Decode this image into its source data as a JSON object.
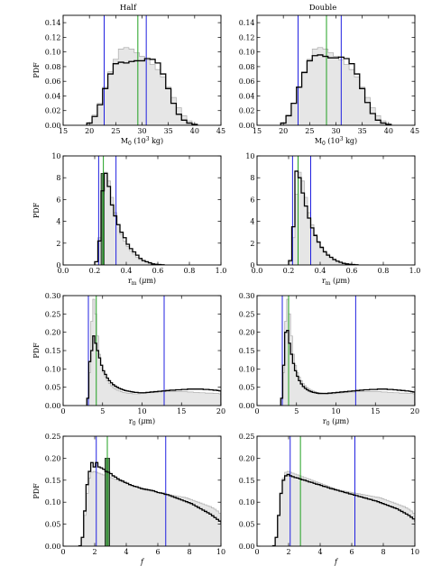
{
  "figure": {
    "column_titles": [
      "Half",
      "Double"
    ]
  },
  "colors": {
    "prior_fill": "#e6e6e6",
    "prior_edge": "#b4b4b4",
    "posterior": "#000000",
    "interval_lines": "#2020e0",
    "median_line": "#20a020"
  },
  "chart_data": [
    {
      "type": "histogram",
      "row": 0,
      "col": 0,
      "ylabel": "PDF",
      "xlabel_main": "M",
      "xlabel_sub": "0",
      "xlabel_rest": " (10",
      "xlabel_sup": "3",
      "xlabel_tail": " kg)",
      "xlim": [
        15,
        45
      ],
      "ylim": [
        0,
        0.15
      ],
      "xticks": [
        15,
        20,
        25,
        30,
        35,
        40,
        45
      ],
      "yticks": [
        0.0,
        0.02,
        0.04,
        0.06,
        0.08,
        0.1,
        0.12,
        0.14
      ],
      "ytick_labels": [
        "0.00",
        "0.02",
        "0.04",
        "0.06",
        "0.08",
        "0.10",
        "0.12",
        "0.14"
      ],
      "bin_start": 19.5,
      "bin_width": 1,
      "prior": [
        0.003,
        0.014,
        0.03,
        0.052,
        0.073,
        0.09,
        0.104,
        0.106,
        0.104,
        0.099,
        0.094,
        0.089,
        0.083,
        0.076,
        0.066,
        0.052,
        0.038,
        0.024,
        0.013,
        0.006,
        0.002
      ],
      "posterior": [
        0.003,
        0.012,
        0.028,
        0.05,
        0.07,
        0.084,
        0.086,
        0.085,
        0.087,
        0.088,
        0.088,
        0.091,
        0.09,
        0.085,
        0.07,
        0.05,
        0.03,
        0.015,
        0.007,
        0.003,
        0.001
      ],
      "vlines_blue": [
        22.8,
        30.8
      ],
      "vline_green": 29.2
    },
    {
      "type": "histogram",
      "row": 0,
      "col": 1,
      "ylabel": "",
      "xlabel_main": "M",
      "xlabel_sub": "0",
      "xlabel_rest": " (10",
      "xlabel_sup": "3",
      "xlabel_tail": " kg)",
      "xlim": [
        15,
        45
      ],
      "ylim": [
        0,
        0.15
      ],
      "xticks": [
        15,
        20,
        25,
        30,
        35,
        40,
        45
      ],
      "yticks": [
        0.0,
        0.02,
        0.04,
        0.06,
        0.08,
        0.1,
        0.12,
        0.14
      ],
      "ytick_labels": [
        "0.00",
        "0.02",
        "0.04",
        "0.06",
        "0.08",
        "0.10",
        "0.12",
        "0.14"
      ],
      "bin_start": 19.5,
      "bin_width": 1,
      "prior": [
        0.003,
        0.014,
        0.03,
        0.052,
        0.073,
        0.09,
        0.104,
        0.106,
        0.104,
        0.099,
        0.094,
        0.089,
        0.083,
        0.076,
        0.066,
        0.052,
        0.038,
        0.024,
        0.013,
        0.006,
        0.002
      ],
      "posterior": [
        0.003,
        0.013,
        0.03,
        0.052,
        0.072,
        0.088,
        0.095,
        0.096,
        0.094,
        0.092,
        0.092,
        0.093,
        0.091,
        0.084,
        0.07,
        0.05,
        0.031,
        0.016,
        0.007,
        0.003,
        0.001
      ],
      "vlines_blue": [
        22.8,
        31.0
      ],
      "vline_green": 28.2
    },
    {
      "type": "histogram",
      "row": 1,
      "col": 0,
      "ylabel": "PDF",
      "xlabel_main": "r",
      "xlabel_sub": "m",
      "xlabel_rest": " (",
      "xlabel_mu": true,
      "xlabel_tail": "m)",
      "xlim": [
        0,
        1
      ],
      "ylim": [
        0,
        10
      ],
      "xticks": [
        0.0,
        0.2,
        0.4,
        0.6,
        0.8,
        1.0
      ],
      "xtick_labels": [
        "0.0",
        "0.2",
        "0.4",
        "0.6",
        "0.8",
        "1.0"
      ],
      "yticks": [
        0,
        2,
        4,
        6,
        8,
        10
      ],
      "ytick_labels": [
        "0",
        "2",
        "4",
        "6",
        "8",
        "10"
      ],
      "bin_start": 0.2,
      "bin_width": 0.02,
      "prior": [
        0.3,
        2.5,
        6.5,
        8.5,
        7.7,
        6.2,
        4.8,
        3.7,
        2.8,
        2.2,
        1.7,
        1.3,
        1.0,
        0.7,
        0.5,
        0.35,
        0.25,
        0.15,
        0.1,
        0.05,
        0.03,
        0.02
      ],
      "posterior": [
        0.3,
        2.2,
        6.8,
        8.4,
        7.2,
        5.5,
        4.5,
        3.7,
        3.0,
        2.5,
        1.9,
        1.5,
        1.2,
        0.9,
        0.6,
        0.4,
        0.3,
        0.2,
        0.1,
        0.06,
        0.04,
        0.02
      ],
      "highlight": {
        "x0": 0.24,
        "x1": 0.26,
        "y": 8.4
      },
      "vlines_blue": [
        0.225,
        0.335
      ],
      "vline_green": 0.255
    },
    {
      "type": "histogram",
      "row": 1,
      "col": 1,
      "ylabel": "",
      "xlabel_main": "r",
      "xlabel_sub": "m",
      "xlabel_rest": " (",
      "xlabel_mu": true,
      "xlabel_tail": "m)",
      "xlim": [
        0,
        1
      ],
      "ylim": [
        0,
        10
      ],
      "xticks": [
        0.0,
        0.2,
        0.4,
        0.6,
        0.8,
        1.0
      ],
      "xtick_labels": [
        "0.0",
        "0.2",
        "0.4",
        "0.6",
        "0.8",
        "1.0"
      ],
      "yticks": [
        0,
        2,
        4,
        6,
        8,
        10
      ],
      "ytick_labels": [
        "0",
        "2",
        "4",
        "6",
        "8",
        "10"
      ],
      "bin_start": 0.2,
      "bin_width": 0.02,
      "prior": [
        0.3,
        2.5,
        6.5,
        8.5,
        7.7,
        6.2,
        4.8,
        3.7,
        2.8,
        2.2,
        1.7,
        1.3,
        1.0,
        0.7,
        0.5,
        0.35,
        0.25,
        0.15,
        0.1,
        0.05,
        0.03,
        0.02
      ],
      "posterior": [
        0.4,
        3.5,
        8.6,
        8.0,
        6.6,
        5.4,
        4.3,
        3.4,
        2.7,
        2.1,
        1.6,
        1.2,
        0.9,
        0.7,
        0.5,
        0.35,
        0.25,
        0.15,
        0.1,
        0.06,
        0.04,
        0.02
      ],
      "vlines_blue": [
        0.225,
        0.34
      ],
      "vline_green": 0.26
    },
    {
      "type": "histogram",
      "row": 2,
      "col": 0,
      "ylabel": "PDF",
      "xlabel_main": "r",
      "xlabel_sub": "0",
      "xlabel_rest": " (",
      "xlabel_mu": true,
      "xlabel_tail": "m)",
      "xlim": [
        0,
        20
      ],
      "ylim": [
        0,
        0.3
      ],
      "xticks": [
        0,
        5,
        10,
        15,
        20
      ],
      "yticks": [
        0.0,
        0.05,
        0.1,
        0.15,
        0.2,
        0.25,
        0.3
      ],
      "ytick_labels": [
        "0.00",
        "0.05",
        "0.10",
        "0.15",
        "0.20",
        "0.25",
        "0.30"
      ],
      "bin_start": 3,
      "bin_width": 0.25,
      "prior": [
        0.02,
        0.09,
        0.23,
        0.29,
        0.25,
        0.19,
        0.14,
        0.11,
        0.09,
        0.078,
        0.068,
        0.06,
        0.054,
        0.049,
        0.045,
        0.042,
        0.04,
        0.038,
        0.036,
        0.035,
        0.034,
        0.033,
        0.033,
        0.032,
        0.032,
        0.032,
        0.032,
        0.033,
        0.033,
        0.034,
        0.034,
        0.035,
        0.035,
        0.036,
        0.036,
        0.037,
        0.037,
        0.037,
        0.038,
        0.038,
        0.038,
        0.038,
        0.038,
        0.038,
        0.038,
        0.038,
        0.038,
        0.038,
        0.038,
        0.038,
        0.038,
        0.037,
        0.037,
        0.037,
        0.036,
        0.036,
        0.036,
        0.035,
        0.035,
        0.035,
        0.034,
        0.034,
        0.034,
        0.034,
        0.033,
        0.033,
        0.033,
        0.032
      ],
      "posterior": [
        0.02,
        0.12,
        0.15,
        0.19,
        0.17,
        0.15,
        0.13,
        0.11,
        0.095,
        0.085,
        0.075,
        0.068,
        0.062,
        0.057,
        0.053,
        0.05,
        0.047,
        0.045,
        0.043,
        0.041,
        0.04,
        0.039,
        0.038,
        0.037,
        0.036,
        0.036,
        0.035,
        0.035,
        0.035,
        0.035,
        0.036,
        0.036,
        0.037,
        0.037,
        0.038,
        0.038,
        0.039,
        0.039,
        0.04,
        0.04,
        0.041,
        0.041,
        0.042,
        0.042,
        0.042,
        0.043,
        0.043,
        0.043,
        0.044,
        0.044,
        0.044,
        0.045,
        0.045,
        0.045,
        0.045,
        0.045,
        0.045,
        0.045,
        0.045,
        0.044,
        0.044,
        0.044,
        0.043,
        0.043,
        0.042,
        0.042,
        0.041,
        0.04
      ],
      "vlines_blue": [
        3.2,
        12.8
      ],
      "vline_green": 4.2
    },
    {
      "type": "histogram",
      "row": 2,
      "col": 1,
      "ylabel": "",
      "xlabel_main": "r",
      "xlabel_sub": "0",
      "xlabel_rest": " (",
      "xlabel_mu": true,
      "xlabel_tail": "m)",
      "xlim": [
        0,
        20
      ],
      "ylim": [
        0,
        0.3
      ],
      "xticks": [
        0,
        5,
        10,
        15,
        20
      ],
      "yticks": [
        0.0,
        0.05,
        0.1,
        0.15,
        0.2,
        0.25,
        0.3
      ],
      "ytick_labels": [
        "0.00",
        "0.05",
        "0.10",
        "0.15",
        "0.20",
        "0.25",
        "0.30"
      ],
      "bin_start": 3,
      "bin_width": 0.25,
      "prior": [
        0.02,
        0.09,
        0.23,
        0.29,
        0.25,
        0.19,
        0.14,
        0.11,
        0.09,
        0.078,
        0.068,
        0.06,
        0.054,
        0.049,
        0.045,
        0.042,
        0.04,
        0.038,
        0.036,
        0.035,
        0.034,
        0.033,
        0.033,
        0.032,
        0.032,
        0.032,
        0.032,
        0.033,
        0.033,
        0.034,
        0.034,
        0.035,
        0.035,
        0.036,
        0.036,
        0.037,
        0.037,
        0.037,
        0.038,
        0.038,
        0.038,
        0.038,
        0.038,
        0.038,
        0.038,
        0.038,
        0.038,
        0.038,
        0.038,
        0.038,
        0.038,
        0.037,
        0.037,
        0.037,
        0.036,
        0.036,
        0.036,
        0.035,
        0.035,
        0.035,
        0.034,
        0.034,
        0.034,
        0.034,
        0.033,
        0.033,
        0.033,
        0.032
      ],
      "posterior": [
        0.02,
        0.11,
        0.2,
        0.205,
        0.17,
        0.14,
        0.115,
        0.095,
        0.08,
        0.068,
        0.059,
        0.052,
        0.047,
        0.043,
        0.04,
        0.038,
        0.036,
        0.035,
        0.034,
        0.033,
        0.033,
        0.033,
        0.033,
        0.033,
        0.034,
        0.034,
        0.035,
        0.035,
        0.036,
        0.036,
        0.037,
        0.037,
        0.038,
        0.038,
        0.039,
        0.039,
        0.04,
        0.04,
        0.041,
        0.041,
        0.042,
        0.042,
        0.043,
        0.043,
        0.043,
        0.044,
        0.044,
        0.044,
        0.044,
        0.045,
        0.045,
        0.045,
        0.045,
        0.045,
        0.044,
        0.044,
        0.044,
        0.043,
        0.043,
        0.042,
        0.042,
        0.041,
        0.041,
        0.04,
        0.04,
        0.039,
        0.038,
        0.037
      ],
      "vlines_blue": [
        3.2,
        12.5
      ],
      "vline_green": 4.0
    },
    {
      "type": "histogram",
      "row": 3,
      "col": 0,
      "ylabel": "PDF",
      "xlabel_f": "f",
      "xlim": [
        0,
        10
      ],
      "ylim": [
        0,
        0.25
      ],
      "xticks": [
        0,
        2,
        4,
        6,
        8,
        10
      ],
      "yticks": [
        0.0,
        0.05,
        0.1,
        0.15,
        0.2,
        0.25
      ],
      "ytick_labels": [
        "0.00",
        "0.05",
        "0.10",
        "0.15",
        "0.20",
        "0.25"
      ],
      "bin_start": 1,
      "bin_width": 0.15,
      "prior": [
        0.001,
        0.02,
        0.07,
        0.12,
        0.155,
        0.168,
        0.17,
        0.168,
        0.166,
        0.164,
        0.162,
        0.16,
        0.158,
        0.156,
        0.154,
        0.152,
        0.15,
        0.148,
        0.146,
        0.144,
        0.142,
        0.14,
        0.138,
        0.136,
        0.134,
        0.132,
        0.13,
        0.128,
        0.127,
        0.126,
        0.125,
        0.124,
        0.123,
        0.122,
        0.121,
        0.12,
        0.119,
        0.118,
        0.117,
        0.116,
        0.115,
        0.114,
        0.113,
        0.112,
        0.111,
        0.11,
        0.108,
        0.106,
        0.104,
        0.102,
        0.1,
        0.098,
        0.096,
        0.094,
        0.092,
        0.09,
        0.087,
        0.084,
        0.08,
        0.075,
        0.07
      ],
      "posterior": [
        0.001,
        0.02,
        0.08,
        0.14,
        0.17,
        0.19,
        0.18,
        0.19,
        0.18,
        0.178,
        0.175,
        0.17,
        0.168,
        0.165,
        0.16,
        0.157,
        0.153,
        0.15,
        0.148,
        0.145,
        0.143,
        0.14,
        0.138,
        0.136,
        0.135,
        0.133,
        0.131,
        0.13,
        0.129,
        0.128,
        0.127,
        0.126,
        0.124,
        0.122,
        0.121,
        0.12,
        0.118,
        0.117,
        0.115,
        0.113,
        0.111,
        0.109,
        0.107,
        0.105,
        0.103,
        0.101,
        0.099,
        0.097,
        0.094,
        0.091,
        0.088,
        0.085,
        0.082,
        0.079,
        0.076,
        0.073,
        0.069,
        0.065,
        0.061,
        0.057,
        0.053
      ],
      "highlight": {
        "x0": 2.65,
        "x1": 2.95,
        "y": 0.2
      },
      "vlines_blue": [
        2.1,
        6.5
      ],
      "vline_green": 2.8
    },
    {
      "type": "histogram",
      "row": 3,
      "col": 1,
      "ylabel": "",
      "xlabel_f": "f",
      "xlim": [
        0,
        10
      ],
      "ylim": [
        0,
        0.25
      ],
      "xticks": [
        0,
        2,
        4,
        6,
        8,
        10
      ],
      "yticks": [
        0.0,
        0.05,
        0.1,
        0.15,
        0.2,
        0.25
      ],
      "ytick_labels": [
        "0.00",
        "0.05",
        "0.10",
        "0.15",
        "0.20",
        "0.25"
      ],
      "bin_start": 1,
      "bin_width": 0.15,
      "prior": [
        0.001,
        0.02,
        0.07,
        0.12,
        0.155,
        0.168,
        0.17,
        0.168,
        0.166,
        0.164,
        0.162,
        0.16,
        0.158,
        0.156,
        0.154,
        0.152,
        0.15,
        0.148,
        0.146,
        0.144,
        0.142,
        0.14,
        0.138,
        0.136,
        0.134,
        0.132,
        0.13,
        0.128,
        0.127,
        0.126,
        0.125,
        0.124,
        0.123,
        0.122,
        0.121,
        0.12,
        0.119,
        0.118,
        0.117,
        0.116,
        0.115,
        0.114,
        0.113,
        0.112,
        0.111,
        0.11,
        0.108,
        0.106,
        0.104,
        0.102,
        0.1,
        0.098,
        0.096,
        0.094,
        0.092,
        0.09,
        0.087,
        0.084,
        0.08,
        0.075,
        0.07
      ],
      "posterior": [
        0.001,
        0.02,
        0.07,
        0.12,
        0.15,
        0.16,
        0.163,
        0.16,
        0.158,
        0.156,
        0.155,
        0.153,
        0.151,
        0.15,
        0.148,
        0.146,
        0.145,
        0.143,
        0.141,
        0.14,
        0.138,
        0.136,
        0.135,
        0.133,
        0.131,
        0.13,
        0.128,
        0.127,
        0.125,
        0.124,
        0.122,
        0.121,
        0.119,
        0.118,
        0.116,
        0.115,
        0.113,
        0.112,
        0.11,
        0.109,
        0.107,
        0.106,
        0.104,
        0.103,
        0.101,
        0.099,
        0.097,
        0.095,
        0.093,
        0.091,
        0.089,
        0.087,
        0.085,
        0.082,
        0.079,
        0.076,
        0.073,
        0.07,
        0.066,
        0.062,
        0.057
      ],
      "vlines_blue": [
        2.1,
        6.2
      ],
      "vline_green": 2.75
    }
  ]
}
